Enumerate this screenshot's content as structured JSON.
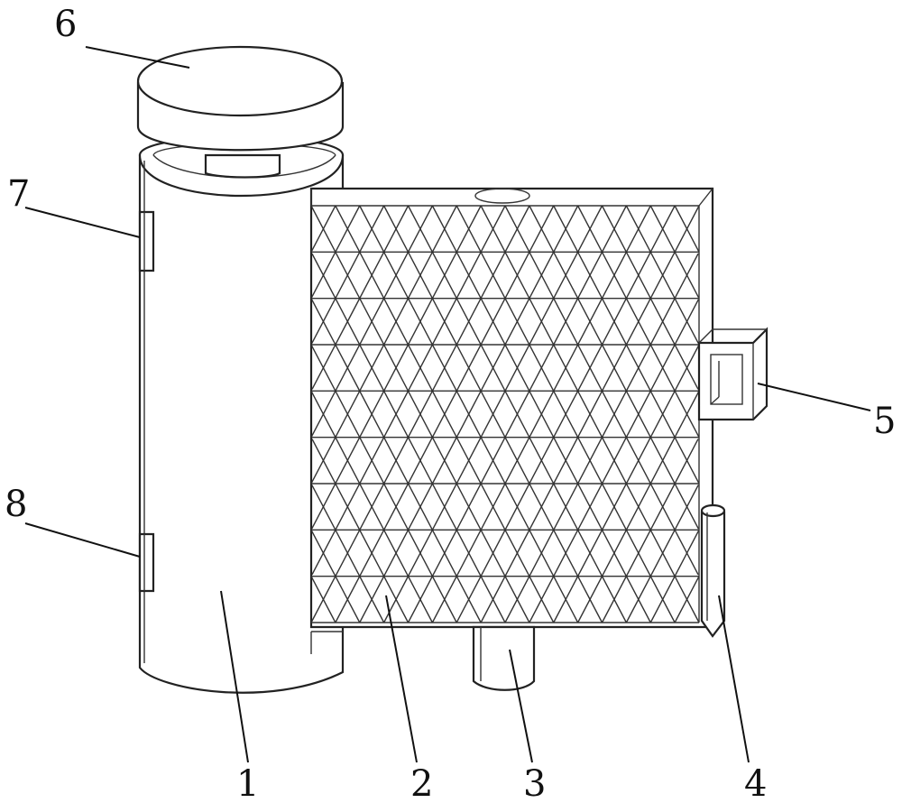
{
  "labels": {
    "l1": "1",
    "l2": "2",
    "l3": "3",
    "l4": "4",
    "l5": "5",
    "l6": "6",
    "l7": "7",
    "l8": "8"
  },
  "colors": {
    "line": "#222222",
    "background": "#ffffff"
  }
}
